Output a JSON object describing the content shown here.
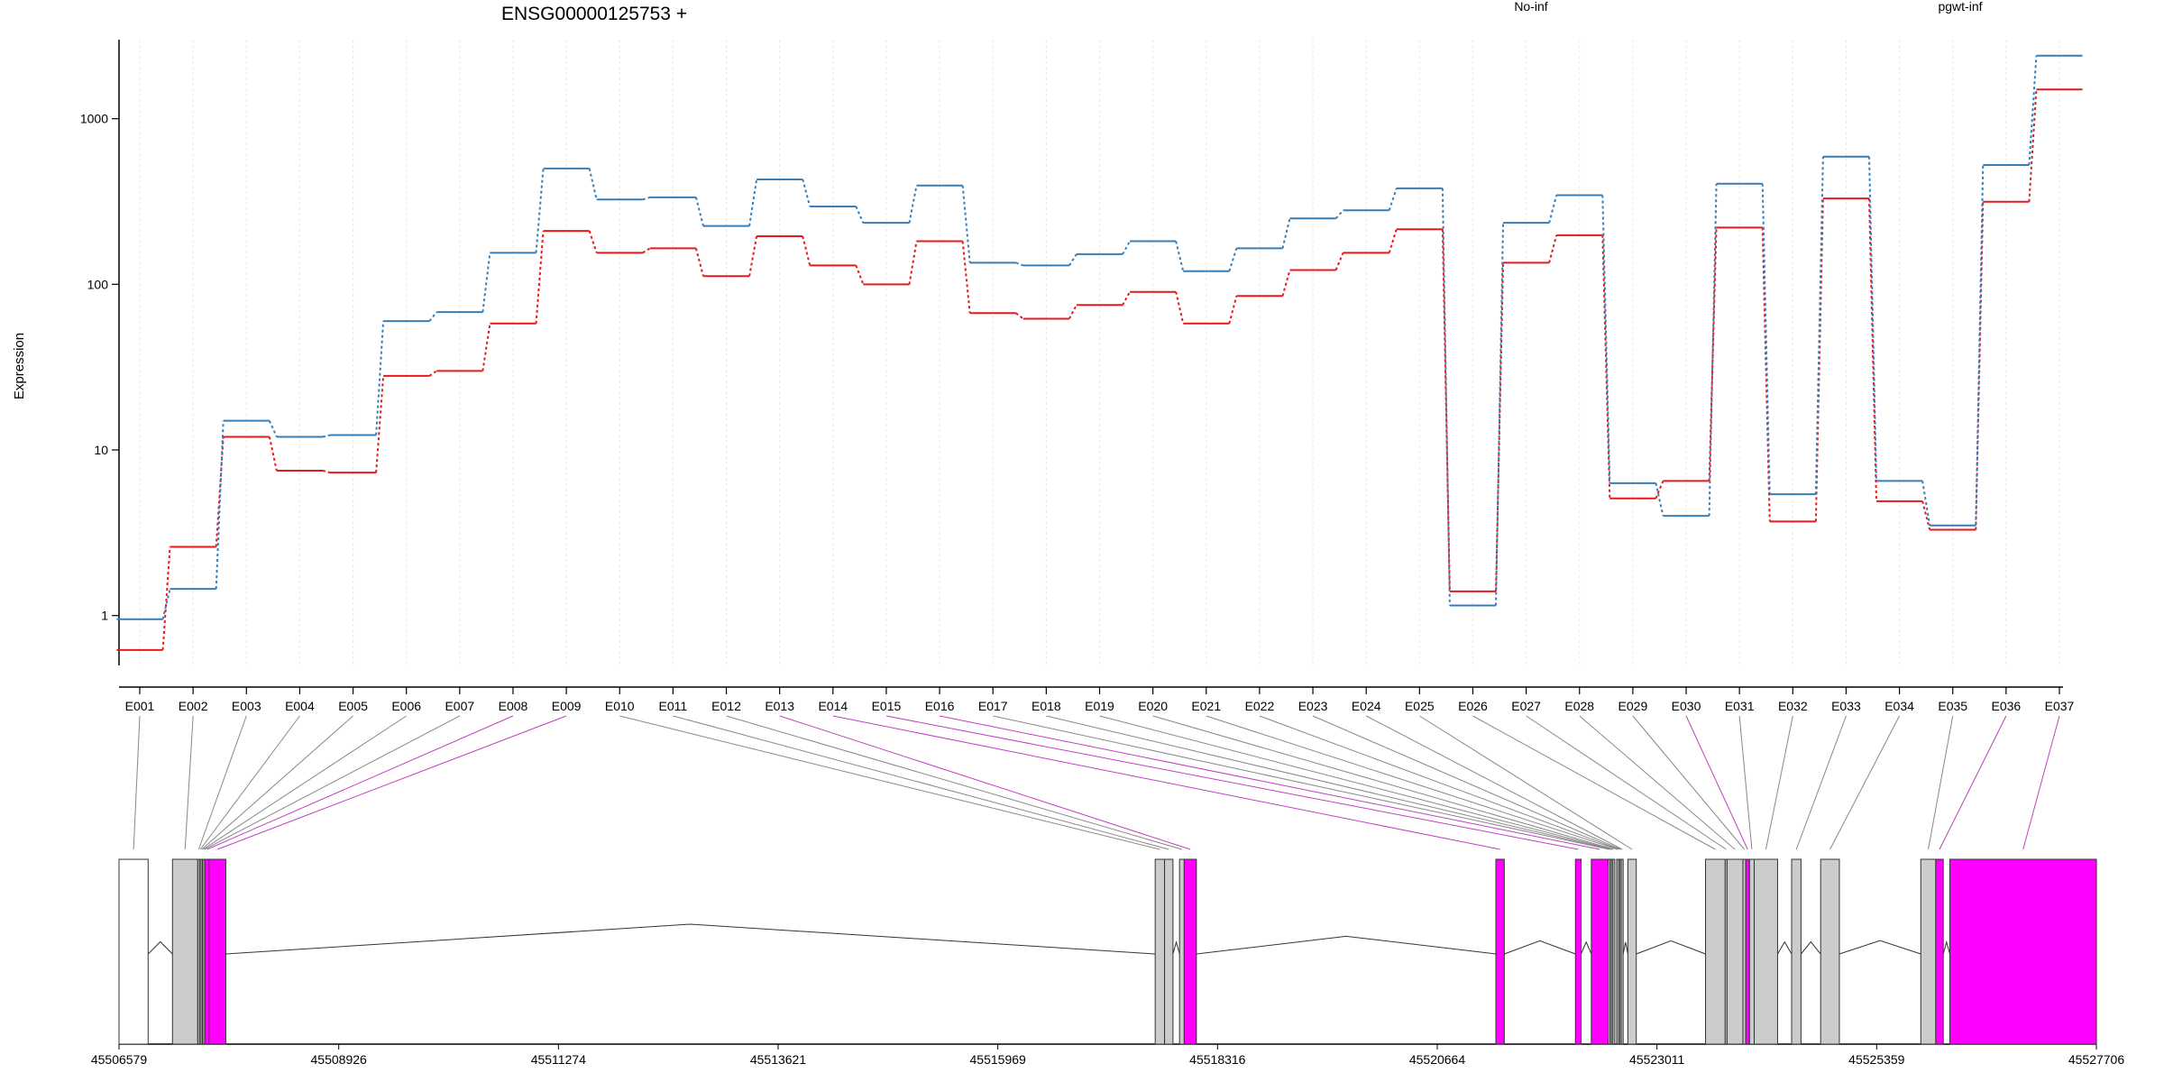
{
  "chart_data": {
    "type": "line",
    "title": "ENSG00000125753 +",
    "ylabel": "Expression",
    "xlabel": "",
    "yscale": "log",
    "ylim": [
      0.5,
      3000
    ],
    "yticks": [
      1,
      10,
      100,
      1000
    ],
    "yticklabels": [
      "1",
      "10",
      "100",
      "1000"
    ],
    "grid": true,
    "legend_position": "top",
    "categories": [
      "E001",
      "E002",
      "E003",
      "E004",
      "E005",
      "E006",
      "E007",
      "E008",
      "E009",
      "E010",
      "E011",
      "E012",
      "E013",
      "E014",
      "E015",
      "E016",
      "E017",
      "E018",
      "E019",
      "E020",
      "E021",
      "E022",
      "E023",
      "E024",
      "E025",
      "E026",
      "E027",
      "E028",
      "E029",
      "E030",
      "E031",
      "E032",
      "E033",
      "E034",
      "E035",
      "E036",
      "E037"
    ],
    "series": [
      {
        "name": "No-inf",
        "color": "#e41a1c",
        "values": [
          0.62,
          2.6,
          12,
          7.5,
          7.3,
          28,
          30,
          58,
          210,
          155,
          165,
          112,
          195,
          130,
          100,
          182,
          67,
          62,
          75,
          90,
          58,
          85,
          122,
          155,
          215,
          1.4,
          135,
          198,
          5.1,
          6.5,
          220,
          3.7,
          330,
          4.9,
          3.3,
          315,
          1500
        ]
      },
      {
        "name": "pgwt-inf",
        "color": "#377eb8",
        "values": [
          0.95,
          1.45,
          15,
          12,
          12.3,
          60,
          68,
          155,
          500,
          325,
          335,
          225,
          430,
          295,
          235,
          395,
          135,
          130,
          152,
          182,
          120,
          165,
          250,
          280,
          380,
          1.15,
          235,
          345,
          6.3,
          4.0,
          405,
          5.4,
          590,
          6.5,
          3.5,
          525,
          2400
        ]
      }
    ],
    "gene_model": {
      "coordinate_labels": [
        "45506579",
        "45508926",
        "45511274",
        "45513621",
        "45515969",
        "45518316",
        "45520664",
        "45523011",
        "45525359",
        "45527706"
      ],
      "coord_range": [
        45506579,
        45527706
      ],
      "exon_fill_colors": {
        "plain": "#cccccc",
        "significant": "#ff00ff",
        "unused": "#ffffff"
      },
      "connector_colors": {
        "plain": "#888888",
        "significant": "#c040c0"
      },
      "exons": [
        {
          "id": "E001",
          "start": 45506579,
          "end": 45506890,
          "status": "unused"
        },
        {
          "id": "E002",
          "start": 45507150,
          "end": 45507420,
          "status": "plain"
        },
        {
          "id": "E003",
          "start": 45507420,
          "end": 45507440,
          "status": "plain"
        },
        {
          "id": "E004",
          "start": 45507440,
          "end": 45507455,
          "status": "plain"
        },
        {
          "id": "E005",
          "start": 45507455,
          "end": 45507470,
          "status": "plain"
        },
        {
          "id": "E006",
          "start": 45507470,
          "end": 45507485,
          "status": "plain"
        },
        {
          "id": "E007",
          "start": 45507485,
          "end": 45507500,
          "status": "plain"
        },
        {
          "id": "E008",
          "start": 45507500,
          "end": 45507540,
          "status": "significant"
        },
        {
          "id": "E009",
          "start": 45507540,
          "end": 45507720,
          "status": "significant"
        },
        {
          "id": "E010",
          "start": 45517650,
          "end": 45517750,
          "status": "plain"
        },
        {
          "id": "E011",
          "start": 45517750,
          "end": 45517840,
          "status": "plain"
        },
        {
          "id": "E012",
          "start": 45517910,
          "end": 45517960,
          "status": "plain"
        },
        {
          "id": "E013",
          "start": 45517960,
          "end": 45518090,
          "status": "significant"
        },
        {
          "id": "E014",
          "start": 45521290,
          "end": 45521380,
          "status": "significant"
        },
        {
          "id": "E015",
          "start": 45522140,
          "end": 45522200,
          "status": "significant"
        },
        {
          "id": "E016",
          "start": 45522310,
          "end": 45522490,
          "status": "significant"
        },
        {
          "id": "E017",
          "start": 45522490,
          "end": 45522510,
          "status": "plain"
        },
        {
          "id": "E018",
          "start": 45522510,
          "end": 45522525,
          "status": "plain"
        },
        {
          "id": "E019",
          "start": 45522525,
          "end": 45522540,
          "status": "plain"
        },
        {
          "id": "E020",
          "start": 45522540,
          "end": 45522560,
          "status": "plain"
        },
        {
          "id": "E021",
          "start": 45522580,
          "end": 45522600,
          "status": "plain"
        },
        {
          "id": "E022",
          "start": 45522600,
          "end": 45522615,
          "status": "plain"
        },
        {
          "id": "E023",
          "start": 45522615,
          "end": 45522630,
          "status": "plain"
        },
        {
          "id": "E024",
          "start": 45522630,
          "end": 45522650,
          "status": "plain"
        },
        {
          "id": "E025",
          "start": 45522700,
          "end": 45522790,
          "status": "plain"
        },
        {
          "id": "E026",
          "start": 45523530,
          "end": 45523740,
          "status": "plain"
        },
        {
          "id": "E027",
          "start": 45523740,
          "end": 45523760,
          "status": "plain"
        },
        {
          "id": "E028",
          "start": 45523760,
          "end": 45523930,
          "status": "plain"
        },
        {
          "id": "E029",
          "start": 45523930,
          "end": 45523960,
          "status": "plain"
        },
        {
          "id": "E030",
          "start": 45523960,
          "end": 45524000,
          "status": "significant"
        },
        {
          "id": "E031",
          "start": 45524000,
          "end": 45524050,
          "status": "plain"
        },
        {
          "id": "E032",
          "start": 45524050,
          "end": 45524300,
          "status": "plain"
        },
        {
          "id": "E033",
          "start": 45524450,
          "end": 45524550,
          "status": "plain"
        },
        {
          "id": "E034",
          "start": 45524760,
          "end": 45524960,
          "status": "plain"
        },
        {
          "id": "E035",
          "start": 45525830,
          "end": 45525990,
          "status": "plain"
        },
        {
          "id": "E036",
          "start": 45525990,
          "end": 45526070,
          "status": "significant"
        },
        {
          "id": "E037",
          "start": 45526140,
          "end": 45527706,
          "status": "significant"
        }
      ]
    }
  }
}
